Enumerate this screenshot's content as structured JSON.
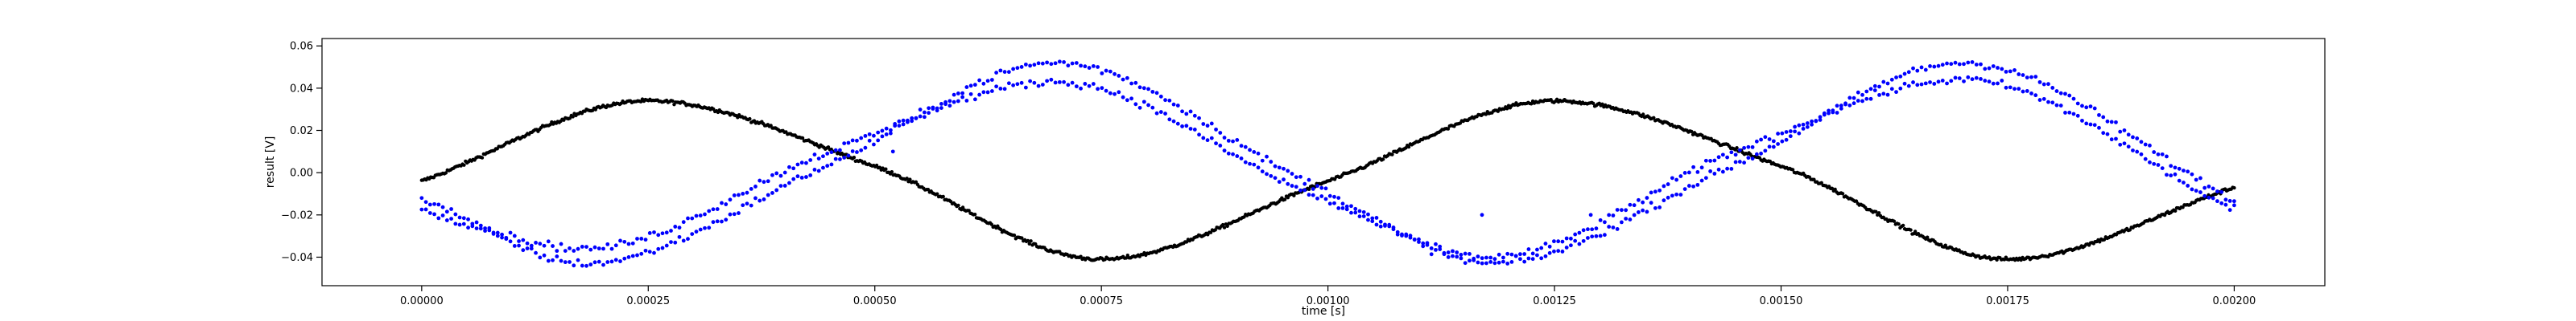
{
  "chart_data": {
    "type": "scatter",
    "title": "",
    "xlabel": "time [s]",
    "ylabel": "result [V]",
    "xlim": [
      -0.00011,
      0.0021
    ],
    "ylim": [
      -0.0535,
      0.0635
    ],
    "grid": false,
    "legend": "none",
    "x_ticks": [
      0.0,
      0.00025,
      0.0005,
      0.00075,
      0.001,
      0.00125,
      0.0015,
      0.00175,
      0.002
    ],
    "x_tick_labels": [
      "0.00000",
      "0.00025",
      "0.00050",
      "0.00075",
      "0.00100",
      "0.00125",
      "0.00150",
      "0.00175",
      "0.00200"
    ],
    "y_ticks": [
      -0.04,
      -0.02,
      0.0,
      0.02,
      0.04,
      0.06
    ],
    "y_tick_labels": [
      "−0.04",
      "−0.02",
      "0.00",
      "0.02",
      "0.04",
      "0.06"
    ],
    "series": [
      {
        "color": "#000000",
        "marker_size": 2.2,
        "x_start": 0.0,
        "x_end": 0.002,
        "n_points": 1200,
        "x_key": [
          0.0,
          0.00025,
          0.0005,
          0.00075,
          0.001,
          0.00125,
          0.0015,
          0.00175,
          0.002
        ],
        "y_key": [
          -0.004,
          0.034,
          0.003,
          -0.041,
          -0.004,
          0.034,
          0.003,
          -0.041,
          -0.007
        ],
        "noise": 0.0008
      },
      {
        "color": "#0000ff",
        "marker_size": 2.4,
        "sub_series": [
          {
            "x_start": 0.0,
            "x_end": 0.002,
            "n_points": 430,
            "x_key": [
              0.0,
              0.00018,
              0.00045,
              0.0007,
              0.00098,
              0.00118,
              0.00145,
              0.0017,
              0.002
            ],
            "y_key": [
              -0.012,
              -0.043,
              0.004,
              0.052,
              -0.005,
              -0.043,
              0.004,
              0.052,
              -0.013
            ],
            "noise": 0.0018
          },
          {
            "x_start": 0.0,
            "x_end": 0.002,
            "n_points": 430,
            "x_key": [
              0.0,
              0.00018,
              0.00045,
              0.0007,
              0.00098,
              0.00118,
              0.00145,
              0.0017,
              0.002
            ],
            "y_key": [
              -0.018,
              -0.036,
              0.01,
              0.043,
              -0.01,
              -0.04,
              0.01,
              0.044,
              -0.018
            ],
            "noise": 0.0018
          }
        ],
        "outliers": [
          [
            0.00117,
            -0.02
          ],
          [
            0.00129,
            -0.02
          ],
          [
            0.00052,
            0.01
          ]
        ]
      }
    ]
  }
}
